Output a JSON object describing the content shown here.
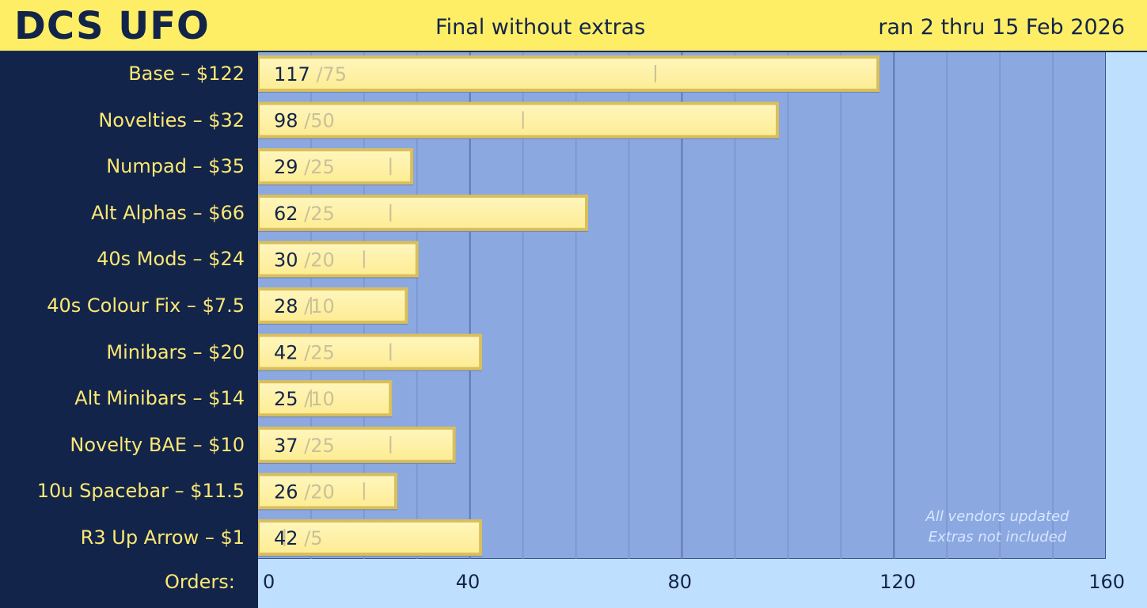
{
  "header": {
    "logo": "DCS UFO",
    "subtitle": "Final without extras",
    "date_range": "ran 2 thru 15 Feb 2026"
  },
  "chart_data": {
    "type": "bar",
    "orientation": "horizontal",
    "categories": [
      "Base – $122",
      "Novelties – $32",
      "Numpad – $35",
      "Alt Alphas – $66",
      "40s Mods – $24",
      "40s Colour Fix – $7.5",
      "Minibars – $20",
      "Alt Minibars – $14",
      "Novelty BAE – $10",
      "10u Spacebar – $11.5",
      "R3 Up Arrow – $1"
    ],
    "series": [
      {
        "values": [
          117,
          98,
          29,
          62,
          30,
          28,
          42,
          25,
          37,
          26,
          42
        ]
      },
      {
        "values": [
          75,
          50,
          25,
          25,
          20,
          10,
          25,
          10,
          25,
          20,
          5
        ]
      }
    ],
    "xlabel": "Orders:",
    "xlim": [
      0,
      160
    ],
    "xticks": [
      0,
      40,
      80,
      120,
      160
    ],
    "grid": true,
    "notes": [
      "All vendors updated",
      "Extras not included"
    ]
  },
  "colors": {
    "header_bg": "#fdee66",
    "sidebar_bg": "#13244a",
    "plot_bg": "#8ba8e1",
    "bar_fill": "#fef2a6",
    "bar_edge": "#d9bf5c",
    "label_text": "#fbe873",
    "value_text": "#13244a",
    "threshold_text": "#c9c09a"
  }
}
